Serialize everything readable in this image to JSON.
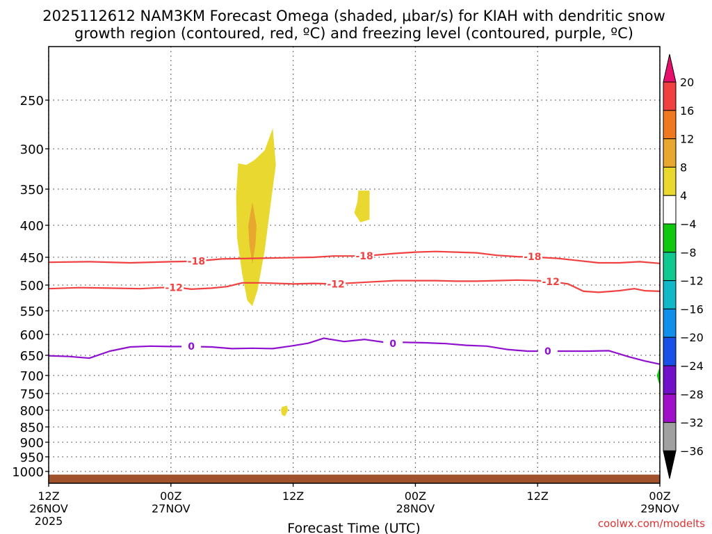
{
  "chart_data": {
    "type": "heatmap",
    "title": "2025112612 NAM3KM Forecast Omega (shaded, μbar/s) for KIAH with dendritic snow",
    "title_line2": "growth region (contoured, red, ºC) and freezing level (contoured, purple, ºC)",
    "xlabel": "Forecast Time (UTC)",
    "ylabel": "",
    "watermark": "coolwx.com/modelts",
    "x_unit": "hours from 2025-11-26 12Z",
    "xlim": [
      0,
      60
    ],
    "y_axis": "pressure (hPa), decreasing upward",
    "x_ticks": [
      {
        "x": 0,
        "label": "12Z",
        "sub": "26NOV",
        "sub2": "2025"
      },
      {
        "x": 12,
        "label": "00Z",
        "sub": "27NOV",
        "sub2": ""
      },
      {
        "x": 24,
        "label": "12Z",
        "sub": "",
        "sub2": ""
      },
      {
        "x": 36,
        "label": "00Z",
        "sub": "28NOV",
        "sub2": ""
      },
      {
        "x": 48,
        "label": "12Z",
        "sub": "",
        "sub2": ""
      },
      {
        "x": 60,
        "label": "00Z",
        "sub": "29NOV",
        "sub2": ""
      }
    ],
    "y_ticks": [
      250,
      300,
      350,
      400,
      450,
      500,
      550,
      600,
      650,
      700,
      750,
      800,
      850,
      900,
      950,
      1000
    ],
    "grid": true,
    "colorbar": {
      "levels": [
        "20",
        "16",
        "12",
        "8",
        "4",
        "−4",
        "−8",
        "−12",
        "−16",
        "−20",
        "−24",
        "−28",
        "−32",
        "−36"
      ],
      "colors_top_down": [
        "#e8106e",
        "#f04040",
        "#f07820",
        "#e8a830",
        "#e8d830",
        "#ffffff",
        "#10c810",
        "#10c890",
        "#10b8c8",
        "#1090e8",
        "#1850e8",
        "#7010c8",
        "#a010c8",
        "#a0a0a0",
        "#000000"
      ]
    },
    "series": [
      {
        "name": "-18",
        "color": "#f04040",
        "labels": [
          {
            "x": 14.5,
            "y": 457
          },
          {
            "x": 31.0,
            "y": 448
          },
          {
            "x": 47.5,
            "y": 449
          }
        ],
        "points": [
          [
            0,
            459
          ],
          [
            4,
            458
          ],
          [
            8,
            460
          ],
          [
            12,
            458
          ],
          [
            14.5,
            457
          ],
          [
            17,
            453
          ],
          [
            20,
            452
          ],
          [
            23,
            451
          ],
          [
            26,
            450
          ],
          [
            28,
            448
          ],
          [
            31,
            448
          ],
          [
            34,
            444
          ],
          [
            36,
            442
          ],
          [
            38,
            441
          ],
          [
            40,
            442
          ],
          [
            42,
            443
          ],
          [
            44,
            447
          ],
          [
            46,
            449
          ],
          [
            48,
            450
          ],
          [
            50,
            452
          ],
          [
            52,
            456
          ],
          [
            54,
            460
          ],
          [
            56,
            460
          ],
          [
            58,
            458
          ],
          [
            60,
            461
          ]
        ]
      },
      {
        "name": "-12",
        "color": "#f04040",
        "labels": [
          {
            "x": 12.3,
            "y": 505
          },
          {
            "x": 28.2,
            "y": 498
          },
          {
            "x": 49.3,
            "y": 494
          }
        ],
        "points": [
          [
            0,
            507
          ],
          [
            3,
            505
          ],
          [
            6,
            506
          ],
          [
            9,
            507
          ],
          [
            11,
            505
          ],
          [
            12.5,
            504
          ],
          [
            14,
            508
          ],
          [
            16,
            506
          ],
          [
            17.5,
            503
          ],
          [
            19,
            496
          ],
          [
            21,
            496
          ],
          [
            24,
            498
          ],
          [
            26,
            497
          ],
          [
            28,
            498
          ],
          [
            30,
            496
          ],
          [
            32,
            494
          ],
          [
            34,
            492
          ],
          [
            36,
            492
          ],
          [
            38,
            492
          ],
          [
            40,
            493
          ],
          [
            42,
            493
          ],
          [
            44,
            492
          ],
          [
            46,
            491
          ],
          [
            48,
            492
          ],
          [
            49.5,
            494
          ],
          [
            51,
            498
          ],
          [
            52.5,
            512
          ],
          [
            54,
            514
          ],
          [
            56,
            511
          ],
          [
            57.5,
            507
          ],
          [
            58.5,
            511
          ],
          [
            60,
            512
          ]
        ]
      },
      {
        "name": "0",
        "color": "#9010d0",
        "labels": [
          {
            "x": 14.0,
            "y": 628
          },
          {
            "x": 33.8,
            "y": 622
          },
          {
            "x": 49.0,
            "y": 640
          }
        ],
        "points": [
          [
            0,
            651
          ],
          [
            2,
            653
          ],
          [
            4,
            657
          ],
          [
            6,
            640
          ],
          [
            8,
            630
          ],
          [
            10,
            628
          ],
          [
            12,
            629
          ],
          [
            14,
            629
          ],
          [
            16,
            630
          ],
          [
            18,
            634
          ],
          [
            20,
            633
          ],
          [
            22,
            634
          ],
          [
            24,
            627
          ],
          [
            25.5,
            621
          ],
          [
            27,
            609
          ],
          [
            29,
            617
          ],
          [
            31,
            612
          ],
          [
            33,
            619
          ],
          [
            35,
            619
          ],
          [
            37,
            620
          ],
          [
            39,
            622
          ],
          [
            41,
            626
          ],
          [
            43,
            628
          ],
          [
            45,
            636
          ],
          [
            47,
            640
          ],
          [
            49,
            640
          ],
          [
            51,
            640
          ],
          [
            53,
            640
          ],
          [
            55,
            639
          ],
          [
            57,
            654
          ],
          [
            58.5,
            664
          ],
          [
            60,
            672
          ]
        ]
      }
    ],
    "shaded_regions": [
      {
        "level": "4 to 8",
        "color": "#e8d830",
        "points": [
          [
            18.6,
            318
          ],
          [
            19.4,
            320
          ],
          [
            20.2,
            314
          ],
          [
            21.2,
            302
          ],
          [
            22.0,
            279
          ],
          [
            22.3,
            320
          ],
          [
            21.8,
            370
          ],
          [
            21.2,
            440
          ],
          [
            20.5,
            510
          ],
          [
            20.0,
            541
          ],
          [
            19.5,
            530
          ],
          [
            19.0,
            480
          ],
          [
            18.5,
            420
          ],
          [
            18.4,
            360
          ]
        ]
      },
      {
        "level": "8 to 12",
        "color": "#e8a830",
        "points": [
          [
            20.0,
            368
          ],
          [
            20.4,
            400
          ],
          [
            20.3,
            430
          ],
          [
            20.0,
            462
          ],
          [
            19.7,
            430
          ],
          [
            19.6,
            400
          ]
        ]
      },
      {
        "level": "4 to 8",
        "color": "#e8d830",
        "points": [
          [
            30.4,
            352
          ],
          [
            31.5,
            352
          ],
          [
            31.5,
            392
          ],
          [
            30.6,
            396
          ],
          [
            30.0,
            383
          ],
          [
            30.3,
            368
          ]
        ]
      },
      {
        "level": "4 to 8",
        "color": "#e8d830",
        "points": [
          [
            22.9,
            790
          ],
          [
            23.4,
            786
          ],
          [
            23.5,
            800
          ],
          [
            23.2,
            818
          ],
          [
            22.9,
            814
          ],
          [
            22.8,
            800
          ]
        ]
      },
      {
        "level": "-4 to -8",
        "color": "#10c810",
        "points": [
          [
            60,
            678
          ],
          [
            59.7,
            700
          ],
          [
            60,
            730
          ]
        ]
      }
    ],
    "surface_band": {
      "color": "#a0522d",
      "top_hPa": 1012
    }
  }
}
